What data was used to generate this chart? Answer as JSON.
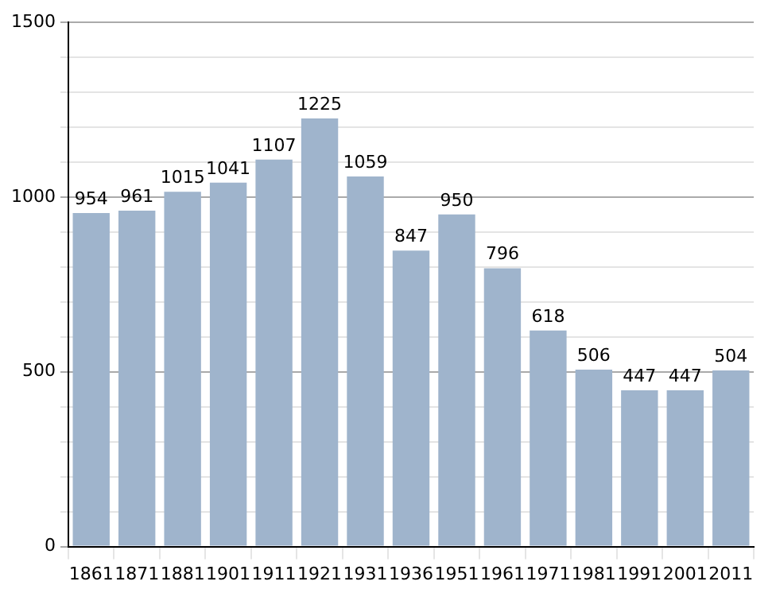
{
  "chart_data": {
    "type": "bar",
    "categories": [
      "1861",
      "1871",
      "1881",
      "1901",
      "1911",
      "1921",
      "1931",
      "1936",
      "1951",
      "1961",
      "1971",
      "1981",
      "1991",
      "2001",
      "2011"
    ],
    "values": [
      954,
      961,
      1015,
      1041,
      1107,
      1225,
      1059,
      847,
      950,
      796,
      618,
      506,
      447,
      447,
      504
    ],
    "color": "#9fb4cc",
    "ylim": [
      0,
      1500
    ],
    "yticks": [
      0,
      {
        "value": 100,
        "label": null
      },
      {
        "value": 200,
        "label": null
      },
      {
        "value": 300,
        "label": null
      },
      {
        "value": 400,
        "label": null
      },
      500,
      {
        "value": 600,
        "label": null
      },
      {
        "value": 700,
        "label": null
      },
      {
        "value": 800,
        "label": null
      },
      {
        "value": 900,
        "label": null
      },
      1000,
      {
        "value": 1100,
        "label": null
      },
      {
        "value": 1200,
        "label": null
      },
      {
        "value": 1300,
        "label": null
      },
      {
        "value": 1400,
        "label": null
      },
      1500
    ],
    "grid": true,
    "data_labels": true
  }
}
